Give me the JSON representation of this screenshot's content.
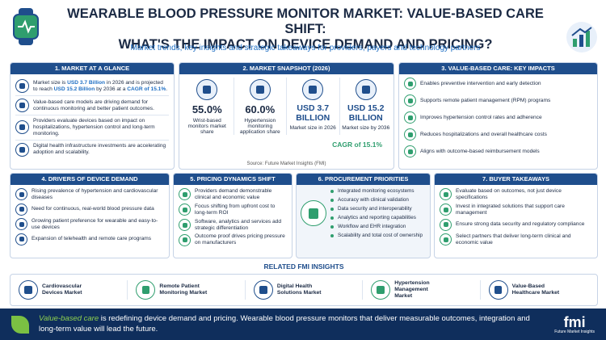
{
  "header": {
    "title_line1": "WEARABLE BLOOD PRESSURE MONITOR MARKET: VALUE-BASED CARE SHIFT:",
    "title_line2": "WHAT'S THE IMPACT ON DEVICE DEMAND AND PRICING?",
    "subtitle": "Market trends, key insights and strategic takeaways for providers, payers and technology partners"
  },
  "glance": {
    "heading": "1. MARKET AT A GLANCE",
    "items": [
      [
        "Market size is ",
        "USD 3.7 Billion",
        " in 2026 and is projected to reach ",
        "USD 15.2 Billion",
        " by 2036 at a ",
        "CAGR of 15.1%",
        "."
      ],
      [
        "Value-based care models are driving demand for continuous monitoring and better patient outcomes."
      ],
      [
        "Providers evaluate devices based on impact on hospitalizations, hypertension control and long-term monitoring."
      ],
      [
        "Digital health infrastructure investments are accelerating adoption and scalability."
      ]
    ]
  },
  "snapshot": {
    "heading": "2. MARKET SNAPSHOT (2026)",
    "stats": [
      {
        "value": "55.0%",
        "label": "Wrist-based monitors market share"
      },
      {
        "value": "60.0%",
        "label": "Hypertension monitoring application share"
      },
      {
        "value": "USD 3.7 BILLION",
        "label": "Market size in 2026"
      },
      {
        "value": "USD 15.2 BILLION",
        "label": "Market size by 2036"
      }
    ],
    "cagr": "CAGR of 15.1%",
    "source": "Source: Future Market Insights (FMI)"
  },
  "impacts": {
    "heading": "3. VALUE-BASED CARE: KEY IMPACTS",
    "items": [
      "Enables preventive intervention and early detection",
      "Supports remote patient management (RPM) programs",
      "Improves hypertension control rates and adherence",
      "Reduces hospitalizations and overall healthcare costs",
      "Aligns with outcome-based reimbursement models"
    ]
  },
  "drivers": {
    "heading": "4. DRIVERS OF DEVICE DEMAND",
    "items": [
      "Rising prevalence of hypertension and cardiovascular diseases",
      "Need for continuous, real-world blood pressure data",
      "Growing patient preference for wearable and easy-to-use devices",
      "Expansion of telehealth and remote care programs"
    ]
  },
  "pricing": {
    "heading": "5. PRICING DYNAMICS SHIFT",
    "items": [
      "Providers demand demonstrable clinical and economic value",
      "Focus shifting from upfront cost to long-term ROI",
      "Software, analytics and services add strategic differentiation",
      "Outcome proof drives pricing pressure on manufacturers"
    ]
  },
  "procurement": {
    "heading": "6. PROCUREMENT PRIORITIES",
    "items": [
      "Integrated monitoring ecosystems",
      "Accuracy with clinical validation",
      "Data security and interoperability",
      "Analytics and reporting capabilities",
      "Workflow and EHR integration",
      "Scalability and total cost of ownership"
    ]
  },
  "takeaways": {
    "heading": "7. BUYER TAKEAWAYS",
    "items": [
      "Evaluate based on outcomes, not just device specifications",
      "Invest in integrated solutions that support care management",
      "Ensure strong data security and regulatory compliance",
      "Select partners that deliver long-term clinical and economic value"
    ]
  },
  "related": {
    "heading": "RELATED FMI INSIGHTS",
    "items": [
      "Cardiovascular Devices Market",
      "Remote Patient Monitoring Market",
      "Digital Health Solutions Market",
      "Hypertension Management Market",
      "Value-Based Healthcare Market"
    ]
  },
  "footer": {
    "parts": [
      "Value-based care",
      " is redefining device demand and pricing. Wearable blood pressure monitors that deliver measurable outcomes, integration and long-term value will lead the future."
    ],
    "logo": "fmi",
    "logo_caption": "Future Market Insights"
  }
}
